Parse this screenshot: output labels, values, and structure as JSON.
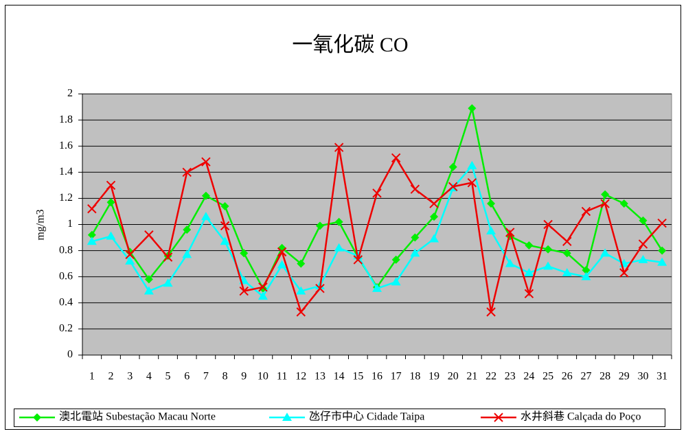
{
  "chart_data": {
    "type": "line",
    "title": "一氧化碳 CO",
    "y_label": "mg/m3",
    "categories": [
      "1",
      "2",
      "3",
      "4",
      "5",
      "6",
      "7",
      "8",
      "9",
      "10",
      "11",
      "12",
      "13",
      "14",
      "15",
      "16",
      "17",
      "18",
      "19",
      "20",
      "21",
      "22",
      "23",
      "24",
      "25",
      "26",
      "27",
      "28",
      "29",
      "30",
      "31"
    ],
    "ylim": [
      0,
      2
    ],
    "yticks": [
      0,
      0.2,
      0.4,
      0.6,
      0.8,
      1,
      1.2,
      1.4,
      1.6,
      1.8,
      2
    ],
    "grid": true,
    "legend": "bottom",
    "series": [
      {
        "name": "澳北電站 Subestação Macau Norte",
        "color": "#00ee00",
        "marker": "diamond",
        "values": [
          0.92,
          1.17,
          0.79,
          0.58,
          0.76,
          0.96,
          1.22,
          1.14,
          0.78,
          0.51,
          0.82,
          0.7,
          0.99,
          1.02,
          0.75,
          0.52,
          0.73,
          0.9,
          1.06,
          1.44,
          1.89,
          1.16,
          0.91,
          0.84,
          0.81,
          0.78,
          0.65,
          1.23,
          1.16,
          1.03,
          0.8
        ]
      },
      {
        "name": "氹仔市中心 Cidade Taipa",
        "color": "#00ffff",
        "marker": "triangle",
        "values": [
          0.87,
          0.91,
          0.72,
          0.49,
          0.55,
          0.77,
          1.06,
          0.87,
          0.57,
          0.45,
          0.69,
          0.49,
          0.53,
          0.82,
          0.76,
          0.51,
          0.56,
          0.78,
          0.89,
          1.28,
          1.45,
          0.95,
          0.7,
          0.63,
          0.68,
          0.63,
          0.6,
          0.78,
          0.7,
          0.73,
          0.71
        ]
      },
      {
        "name": "水井斜巷 Calçada do Poço",
        "color": "#ee0000",
        "marker": "x",
        "values": [
          1.12,
          1.3,
          0.77,
          0.92,
          0.75,
          1.4,
          1.48,
          0.99,
          0.49,
          0.52,
          0.79,
          0.33,
          0.51,
          1.59,
          0.73,
          1.24,
          1.51,
          1.27,
          1.16,
          1.29,
          1.32,
          0.33,
          0.94,
          0.47,
          1.0,
          0.87,
          1.1,
          1.16,
          0.63,
          0.85,
          1.01
        ]
      }
    ]
  }
}
